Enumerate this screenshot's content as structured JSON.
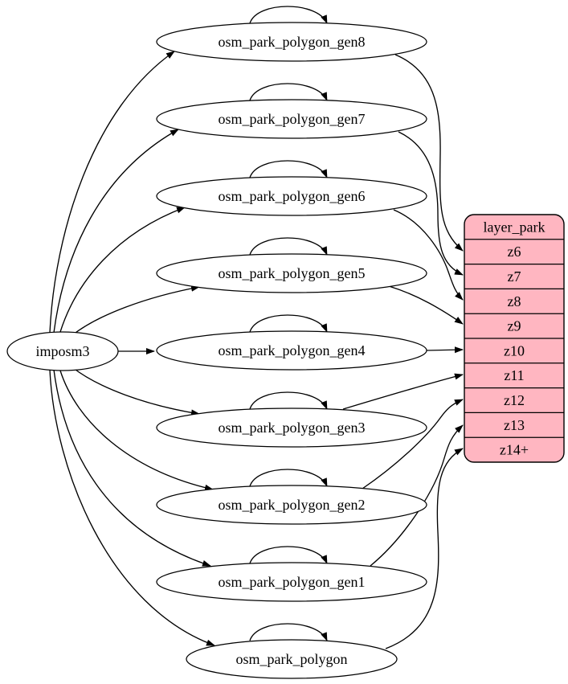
{
  "diagram": {
    "source_node": {
      "label": "imposm3"
    },
    "table_nodes": [
      {
        "label": "osm_park_polygon_gen8",
        "self_loop": true,
        "target_row": "z6"
      },
      {
        "label": "osm_park_polygon_gen7",
        "self_loop": true,
        "target_row": "z7"
      },
      {
        "label": "osm_park_polygon_gen6",
        "self_loop": true,
        "target_row": "z8"
      },
      {
        "label": "osm_park_polygon_gen5",
        "self_loop": true,
        "target_row": "z9"
      },
      {
        "label": "osm_park_polygon_gen4",
        "self_loop": true,
        "target_row": "z10"
      },
      {
        "label": "osm_park_polygon_gen3",
        "self_loop": true,
        "target_row": "z11"
      },
      {
        "label": "osm_park_polygon_gen2",
        "self_loop": true,
        "target_row": "z12"
      },
      {
        "label": "osm_park_polygon_gen1",
        "self_loop": true,
        "target_row": "z13"
      },
      {
        "label": "osm_park_polygon",
        "self_loop": true,
        "target_row": "z14+"
      }
    ],
    "record_node": {
      "title": "layer_park",
      "rows": [
        "z6",
        "z7",
        "z8",
        "z9",
        "z10",
        "z11",
        "z12",
        "z13",
        "z14+"
      ],
      "fill_color": "#ffb6c1",
      "stroke_color": "#000000"
    },
    "colors": {
      "background": "#ffffff",
      "node_fill": "#ffffff",
      "node_stroke": "#000000",
      "edge": "#000000",
      "text": "#000000"
    }
  }
}
